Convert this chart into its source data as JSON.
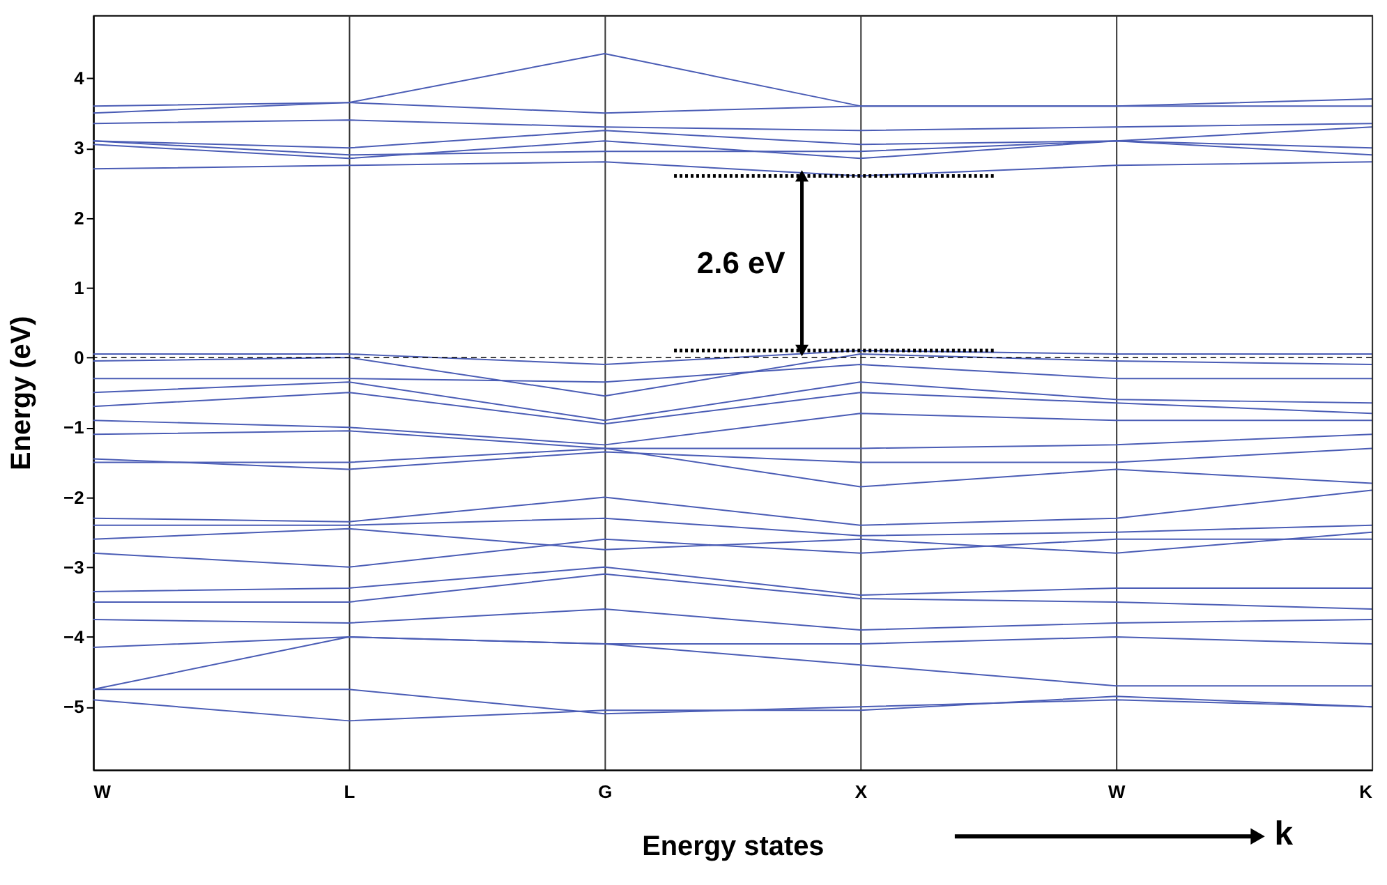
{
  "chart_data": {
    "type": "line",
    "xlabel": "Energy states",
    "ylabel": "Energy (eV)",
    "categories": [
      "W",
      "L",
      "G",
      "X",
      "W",
      "K"
    ],
    "ylim": [
      -5.9,
      4.9
    ],
    "yticks": [
      -5,
      -4,
      -3,
      -2,
      -1,
      0,
      1,
      2,
      3,
      4
    ],
    "grid": "x",
    "marker": "none",
    "line_style": "solid",
    "series": [
      {
        "color": "#4a5cb5",
        "values": [
          3.6,
          3.65,
          4.35,
          3.6,
          3.6,
          3.7
        ]
      },
      {
        "color": "#4a5cb5",
        "values": [
          3.5,
          3.65,
          3.5,
          3.6,
          3.6,
          3.6
        ]
      },
      {
        "color": "#4a5cb5",
        "values": [
          3.35,
          3.4,
          3.3,
          3.25,
          3.3,
          3.35
        ]
      },
      {
        "color": "#4a5cb5",
        "values": [
          3.1,
          3.0,
          3.25,
          3.05,
          3.1,
          3.3
        ]
      },
      {
        "color": "#4a5cb5",
        "values": [
          3.05,
          2.85,
          3.1,
          2.85,
          3.1,
          3.0
        ]
      },
      {
        "color": "#4a5cb5",
        "values": [
          3.1,
          2.9,
          2.95,
          2.95,
          3.1,
          2.9
        ]
      },
      {
        "color": "#4a5cb5",
        "values": [
          2.7,
          2.75,
          2.8,
          2.6,
          2.75,
          2.8
        ]
      },
      {
        "color": "#4a5cb5",
        "values": [
          0.05,
          0.05,
          -0.1,
          0.1,
          0.05,
          0.05
        ]
      },
      {
        "color": "#4a5cb5",
        "values": [
          -0.05,
          0,
          -0.55,
          0.05,
          -0.05,
          -0.1
        ]
      },
      {
        "color": "#4a5cb5",
        "values": [
          -0.3,
          -0.3,
          -0.35,
          -0.1,
          -0.3,
          -0.3
        ]
      },
      {
        "color": "#4a5cb5",
        "values": [
          -0.5,
          -0.35,
          -0.9,
          -0.35,
          -0.6,
          -0.65
        ]
      },
      {
        "color": "#4a5cb5",
        "values": [
          -0.7,
          -0.5,
          -0.95,
          -0.5,
          -0.65,
          -0.8
        ]
      },
      {
        "color": "#4a5cb5",
        "values": [
          -0.9,
          -1.0,
          -1.25,
          -0.8,
          -0.9,
          -0.9
        ]
      },
      {
        "color": "#4a5cb5",
        "values": [
          -1.1,
          -1.05,
          -1.3,
          -1.3,
          -1.25,
          -1.1
        ]
      },
      {
        "color": "#4a5cb5",
        "values": [
          -1.45,
          -1.6,
          -1.35,
          -1.5,
          -1.5,
          -1.3
        ]
      },
      {
        "color": "#4a5cb5",
        "values": [
          -1.5,
          -1.5,
          -1.3,
          -1.85,
          -1.6,
          -1.8
        ]
      },
      {
        "color": "#4a5cb5",
        "values": [
          -2.3,
          -2.35,
          -2.0,
          -2.4,
          -2.3,
          -1.9
        ]
      },
      {
        "color": "#4a5cb5",
        "values": [
          -2.4,
          -2.4,
          -2.3,
          -2.55,
          -2.5,
          -2.4
        ]
      },
      {
        "color": "#4a5cb5",
        "values": [
          -2.6,
          -2.45,
          -2.75,
          -2.6,
          -2.8,
          -2.5
        ]
      },
      {
        "color": "#4a5cb5",
        "values": [
          -2.8,
          -3.0,
          -2.6,
          -2.8,
          -2.6,
          -2.6
        ]
      },
      {
        "color": "#4a5cb5",
        "values": [
          -3.35,
          -3.3,
          -3.0,
          -3.4,
          -3.3,
          -3.3
        ]
      },
      {
        "color": "#4a5cb5",
        "values": [
          -3.5,
          -3.5,
          -3.1,
          -3.45,
          -3.5,
          -3.6
        ]
      },
      {
        "color": "#4a5cb5",
        "values": [
          -3.75,
          -3.8,
          -3.6,
          -3.9,
          -3.8,
          -3.75
        ]
      },
      {
        "color": "#4a5cb5",
        "values": [
          -4.15,
          -4.0,
          -4.1,
          -4.1,
          -4.0,
          -4.1
        ]
      },
      {
        "color": "#4a5cb5",
        "values": [
          -4.75,
          -4.0,
          -4.1,
          -4.4,
          -4.7,
          -4.7
        ]
      },
      {
        "color": "#4a5cb5",
        "values": [
          -4.75,
          -4.75,
          -5.1,
          -5.0,
          -4.9,
          -5.0
        ]
      },
      {
        "color": "#4a5cb5",
        "values": [
          -4.9,
          -5.2,
          -5.05,
          -5.05,
          -4.85,
          -5.0
        ]
      }
    ],
    "ref_lines": [
      {
        "axis": "y",
        "value": 0,
        "line_style": "dashed",
        "color": "#000000"
      },
      {
        "axis": "y",
        "value": 2.6,
        "line_style": "dotted",
        "color": "#000000"
      },
      {
        "axis": "y",
        "value": 0.1,
        "line_style": "dotted",
        "color": "#000000"
      }
    ],
    "annotations": [
      "2.6 eV",
      "k"
    ]
  }
}
